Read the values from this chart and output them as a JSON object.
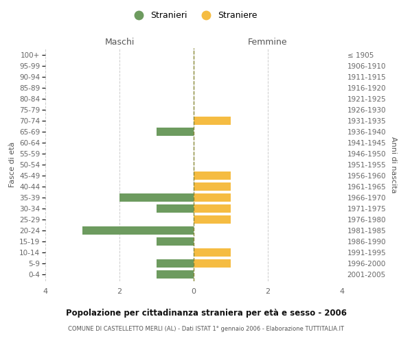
{
  "age_groups": [
    "0-4",
    "5-9",
    "10-14",
    "15-19",
    "20-24",
    "25-29",
    "30-34",
    "35-39",
    "40-44",
    "45-49",
    "50-54",
    "55-59",
    "60-64",
    "65-69",
    "70-74",
    "75-79",
    "80-84",
    "85-89",
    "90-94",
    "95-99",
    "100+"
  ],
  "birth_years": [
    "2001-2005",
    "1996-2000",
    "1991-1995",
    "1986-1990",
    "1981-1985",
    "1976-1980",
    "1971-1975",
    "1966-1970",
    "1961-1965",
    "1956-1960",
    "1951-1955",
    "1946-1950",
    "1941-1945",
    "1936-1940",
    "1931-1935",
    "1926-1930",
    "1921-1925",
    "1916-1920",
    "1911-1915",
    "1906-1910",
    "≤ 1905"
  ],
  "maschi": [
    1,
    1,
    0,
    1,
    3,
    0,
    1,
    2,
    0,
    0,
    0,
    0,
    0,
    1,
    0,
    0,
    0,
    0,
    0,
    0,
    0
  ],
  "femmine": [
    0,
    1,
    1,
    0,
    0,
    1,
    1,
    1,
    1,
    1,
    0,
    0,
    0,
    0,
    1,
    0,
    0,
    0,
    0,
    0,
    0
  ],
  "color_maschi": "#6d9b5f",
  "color_femmine": "#f5bc42",
  "title": "Popolazione per cittadinanza straniera per età e sesso - 2006",
  "subtitle": "COMUNE DI CASTELLETTO MERLI (AL) - Dati ISTAT 1° gennaio 2006 - Elaborazione TUTTITALIA.IT",
  "ylabel_left": "Fasce di età",
  "ylabel_right": "Anni di nascita",
  "xlabel_left": "Maschi",
  "xlabel_right": "Femmine",
  "legend_stranieri": "Stranieri",
  "legend_straniere": "Straniere",
  "xlim": 4,
  "background_color": "#ffffff",
  "grid_color": "#cccccc"
}
